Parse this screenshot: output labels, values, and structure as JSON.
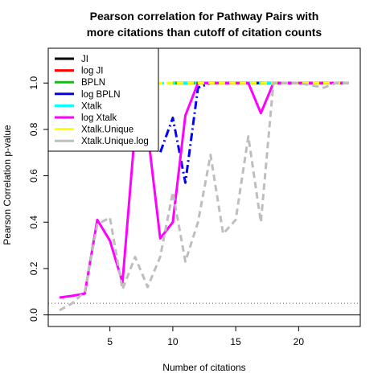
{
  "chart_data": {
    "type": "line",
    "title": [
      "Pearson correlation for Pathway Pairs with",
      "more citations than cutoff of citation counts"
    ],
    "xlabel": "Number of citations",
    "ylabel": "Pearson Correlation p-value",
    "xlim": [
      0.1,
      24.9
    ],
    "ylim": [
      -0.05,
      1.15
    ],
    "x_ticks": [
      5,
      10,
      15,
      20
    ],
    "y_ticks": [
      0.0,
      0.2,
      0.4,
      0.6,
      0.8,
      1.0
    ],
    "legend_position": "top-left",
    "reference_lines": [
      {
        "y": 0.05,
        "style": "dotted",
        "color": "#555555"
      },
      {
        "y": 0.0,
        "style": "solid",
        "color": "#000000"
      }
    ],
    "series": [
      {
        "name": "JI",
        "color": "#000000",
        "dash": "solid",
        "x": [
          10,
          11,
          12,
          13,
          14,
          15,
          16,
          17,
          18,
          19,
          20,
          21,
          22,
          23,
          24
        ],
        "y": [
          1,
          1,
          1,
          1,
          1,
          1,
          1,
          1,
          1,
          1,
          1,
          1,
          1,
          1,
          1
        ]
      },
      {
        "name": "log JI",
        "color": "#ff0000",
        "dash": "solid",
        "x": [
          10,
          11,
          12,
          13,
          14,
          15,
          16,
          17,
          18,
          19,
          20,
          21,
          22,
          23,
          24
        ],
        "y": [
          1,
          1,
          1,
          1,
          1,
          1,
          1,
          1,
          1,
          1,
          1,
          1,
          1,
          1,
          1
        ]
      },
      {
        "name": "BPLN",
        "color": "#00cd00",
        "dash": "solid",
        "x": [
          10,
          11,
          12,
          13,
          14,
          15,
          16,
          17,
          18,
          19,
          20,
          21,
          22,
          23,
          24
        ],
        "y": [
          1,
          1,
          1,
          1,
          1,
          1,
          1,
          1,
          1,
          1,
          1,
          1,
          1,
          1,
          1
        ]
      },
      {
        "name": "log BPLN",
        "color": "#0000ff",
        "dash": "dashdot",
        "x": [
          8,
          9,
          10,
          11,
          12,
          13,
          14,
          15,
          16,
          17,
          18,
          19,
          20,
          21,
          22,
          23,
          24
        ],
        "y": [
          0.74,
          0.7,
          0.85,
          0.57,
          0.98,
          1,
          1,
          1,
          1,
          1,
          1,
          1,
          1,
          1,
          1,
          1,
          1
        ]
      },
      {
        "name": "Xtalk",
        "color": "#00ffff",
        "dash": "dashdot",
        "x": [
          7,
          8,
          9,
          10,
          11,
          12,
          13,
          14,
          15,
          16,
          17,
          18,
          19,
          20,
          21,
          22,
          23,
          24
        ],
        "y": [
          1,
          1,
          1,
          1,
          1,
          1,
          1,
          1,
          1,
          1,
          1,
          1,
          1,
          1,
          1,
          1,
          1,
          1
        ]
      },
      {
        "name": "log Xtalk",
        "color": "#ff00ff",
        "dash": "solid",
        "x": [
          1,
          2,
          3,
          4,
          5,
          6,
          7,
          8,
          9,
          10,
          11,
          12,
          13,
          14,
          15,
          16,
          17,
          18,
          19,
          20,
          21,
          22,
          23,
          24
        ],
        "y": [
          0.075,
          0.082,
          0.092,
          0.41,
          0.32,
          0.14,
          0.8,
          0.79,
          0.33,
          0.4,
          0.86,
          1,
          1,
          1,
          1,
          1,
          0.87,
          1,
          1,
          1,
          1,
          1,
          1,
          1
        ]
      },
      {
        "name": "Xtalk.Unique",
        "color": "#ffff00",
        "dash": "dashed",
        "x": [
          7,
          8,
          9,
          10,
          11,
          12,
          13,
          14,
          15,
          16,
          17,
          18,
          19,
          20,
          21,
          22,
          23,
          24
        ],
        "y": [
          1,
          1,
          1,
          1,
          1,
          1,
          1,
          1,
          1,
          1,
          1,
          1,
          1,
          1,
          1,
          1,
          1,
          1
        ]
      },
      {
        "name": "Xtalk.Unique.log",
        "color": "#bebebe",
        "dash": "dashed",
        "x": [
          1,
          2,
          3,
          4,
          5,
          6,
          7,
          8,
          9,
          10,
          11,
          12,
          13,
          14,
          15,
          16,
          17,
          18,
          19,
          20,
          21,
          22,
          23,
          24
        ],
        "y": [
          0.02,
          0.05,
          0.1,
          0.39,
          0.42,
          0.11,
          0.25,
          0.12,
          0.25,
          0.53,
          0.23,
          0.4,
          0.69,
          0.35,
          0.41,
          0.77,
          0.4,
          1,
          1,
          1,
          0.99,
          0.98,
          1,
          1
        ]
      }
    ]
  }
}
